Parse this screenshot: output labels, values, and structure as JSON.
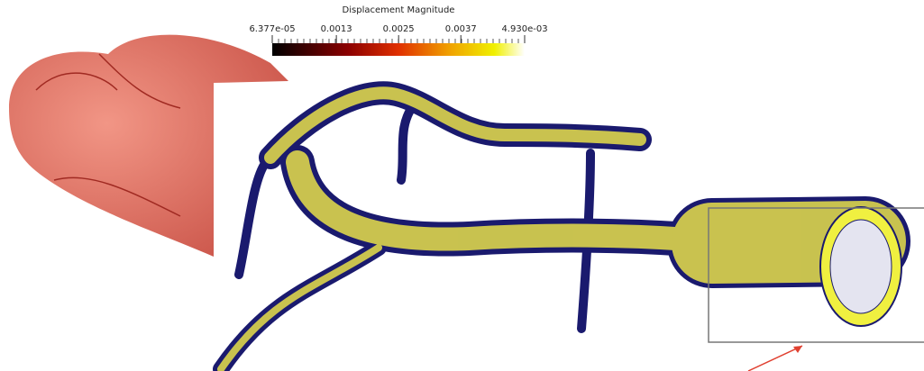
{
  "colorbar": {
    "title": "Displacement Magnitude",
    "range": [
      6.377e-05,
      0.00493
    ],
    "ticks": [
      {
        "value": 6.377e-05,
        "label": "6.377e-05"
      },
      0.0013,
      0.0025,
      0.0037,
      {
        "value": 0.00493,
        "label": "4.930e-03"
      }
    ]
  }
}
